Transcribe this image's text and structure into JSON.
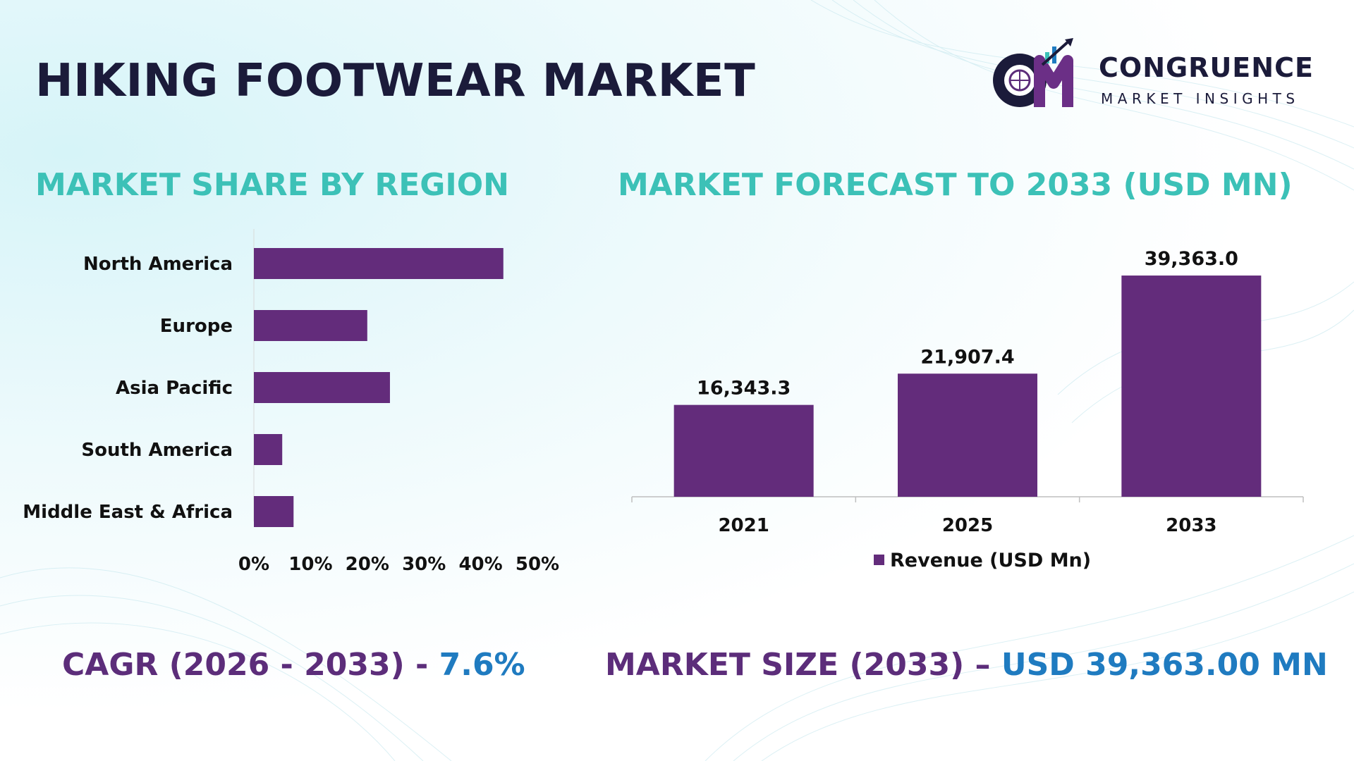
{
  "title": "HIKING FOOTWEAR MARKET",
  "logo": {
    "name": "CONGRUENCE",
    "tagline": "MARKET INSIGHTS"
  },
  "colors": {
    "bar": "#632c7b",
    "section_title": "#3cc1b7",
    "main_title": "#1b1b3a",
    "accent_purple": "#5c2d7a",
    "accent_blue": "#1f7bc0"
  },
  "sections": {
    "left_title": "MARKET SHARE BY REGION",
    "right_title": "MARKET FORECAST TO 2033 (USD MN)"
  },
  "chart_data": [
    {
      "type": "bar",
      "orientation": "horizontal",
      "title": "MARKET SHARE BY REGION",
      "categories": [
        "North America",
        "Europe",
        "Asia Pacific",
        "South America",
        "Middle East & Africa"
      ],
      "values": [
        44,
        20,
        24,
        5,
        7
      ],
      "xlim": [
        0,
        50
      ],
      "x_ticks": [
        "0%",
        "10%",
        "20%",
        "30%",
        "40%",
        "50%"
      ],
      "grid": false
    },
    {
      "type": "bar",
      "orientation": "vertical",
      "title": "MARKET FORECAST TO 2033 (USD MN)",
      "categories": [
        "2021",
        "2025",
        "2033"
      ],
      "series": [
        {
          "name": "Revenue (USD Mn)",
          "values": [
            16343.3,
            21907.4,
            39363.0
          ]
        }
      ],
      "data_labels": [
        "16,343.3",
        "21,907.4",
        "39,363.0"
      ],
      "ylim": [
        0,
        42000
      ],
      "legend": "bottom",
      "grid": false
    }
  ],
  "footer": {
    "cagr_label": "CAGR (2026 - 2033) - ",
    "cagr_value": "7.6%",
    "size_label": "MARKET SIZE (2033) – ",
    "size_value": "USD 39,363.00 MN"
  }
}
